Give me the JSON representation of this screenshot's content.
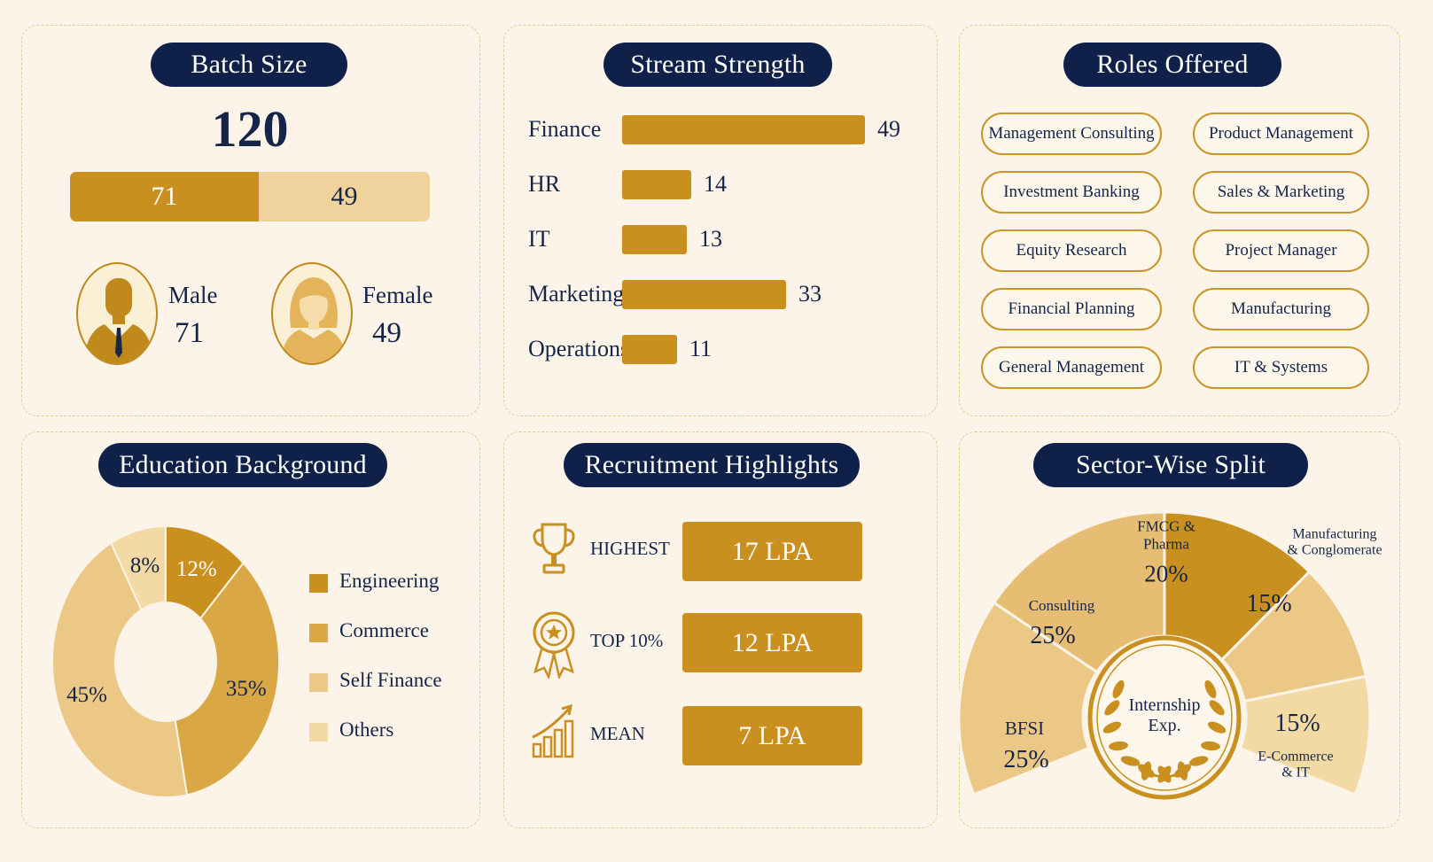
{
  "colors": {
    "background": "#fcf4e8",
    "navy": "#0f2148",
    "gold_dark": "#c98f1f",
    "gold_mid": "#d9a743",
    "gold_light": "#ecc887",
    "gold_pale": "#f3d9a4"
  },
  "batch": {
    "title": "Batch Size",
    "total": "120",
    "male_label": "Male",
    "male_value": "71",
    "female_label": "Female",
    "female_value": "49",
    "male_icon": "male-person-icon",
    "female_icon": "female-person-icon"
  },
  "stream": {
    "title": "Stream Strength",
    "chart_data": {
      "type": "bar",
      "orientation": "horizontal",
      "categories": [
        "Finance",
        "HR",
        "IT",
        "Marketing",
        "Operations"
      ],
      "values": [
        49,
        14,
        13,
        33,
        11
      ],
      "xlim": [
        0,
        49
      ]
    }
  },
  "roles": {
    "title": "Roles Offered",
    "items": [
      "Management Consulting",
      "Product Management",
      "Investment Banking",
      "Sales & Marketing",
      "Equity Research",
      "Project Manager",
      "Financial Planning",
      "Manufacturing",
      "General Management",
      "IT & Systems"
    ]
  },
  "education": {
    "title": "Education Background",
    "chart_data": {
      "type": "pie",
      "style": "donut",
      "categories": [
        "Engineering",
        "Commerce",
        "Self Finance",
        "Others"
      ],
      "values": [
        12,
        35,
        45,
        8
      ],
      "value_labels": [
        "12%",
        "35%",
        "45%",
        "8%"
      ],
      "colors": [
        "#c98f1f",
        "#d9a743",
        "#ecc887",
        "#f3d9a4"
      ],
      "legend_position": "right"
    }
  },
  "recruitment": {
    "title": "Recruitment Highlights",
    "items": [
      {
        "label": "HIGHEST",
        "value": "17 LPA",
        "icon": "trophy-icon"
      },
      {
        "label": "TOP 10%",
        "value": "12 LPA",
        "icon": "medal-icon"
      },
      {
        "label": "MEAN",
        "value": "7 LPA",
        "icon": "growth-chart-icon"
      }
    ]
  },
  "sector": {
    "title": "Sector-Wise Split",
    "center_text": "Internship\nExp.",
    "center_icon": "laurel-wreath-icon",
    "chart_data": {
      "type": "pie",
      "style": "semi-donut",
      "categories": [
        "BFSI",
        "Consulting",
        "FMCG & Pharma",
        "Manufacturing & Conglomerate",
        "E-Commerce & IT"
      ],
      "values": [
        25,
        25,
        20,
        15,
        15
      ],
      "value_labels": [
        "25%",
        "25%",
        "20%",
        "15%",
        "15%"
      ],
      "colors": [
        "#ecc887",
        "#e6bd72",
        "#c98f1f",
        "#ecc887",
        "#f3d9a4"
      ]
    },
    "labels": {
      "bfsi": "BFSI",
      "consulting": "Consulting",
      "fmcg_line1": "FMCG &",
      "fmcg_line2": "Pharma",
      "mfg_line1": "Manufacturing",
      "mfg_line2": "& Conglomerate",
      "ecom_line1": "E-Commerce",
      "ecom_line2": "& IT"
    }
  }
}
